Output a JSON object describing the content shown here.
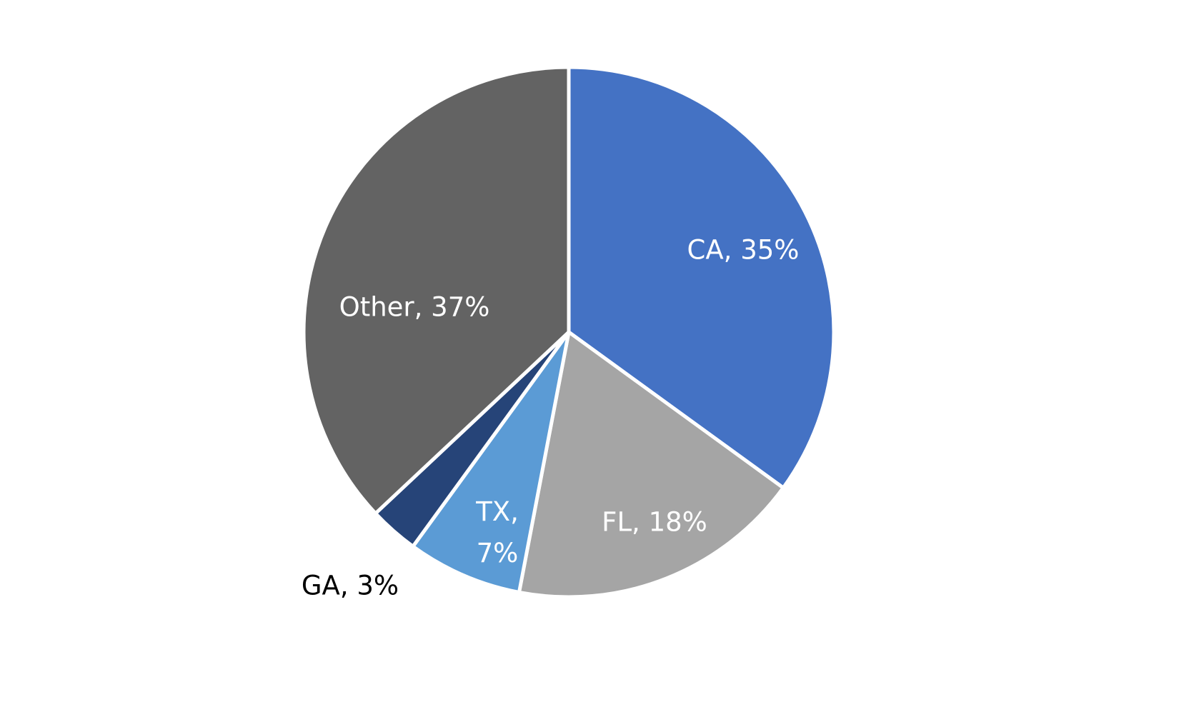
{
  "chart_data": {
    "type": "pie",
    "values": [
      35,
      18,
      7,
      3,
      37
    ],
    "value_labels": [
      "CA, 35%",
      "FL, 18%",
      "TX, 7%",
      "GA, 3%",
      "Other, 37%"
    ],
    "colors": [
      "#4472c4",
      "#a5a5a5",
      "#5b9bd5",
      "#264478",
      "#636363"
    ]
  }
}
